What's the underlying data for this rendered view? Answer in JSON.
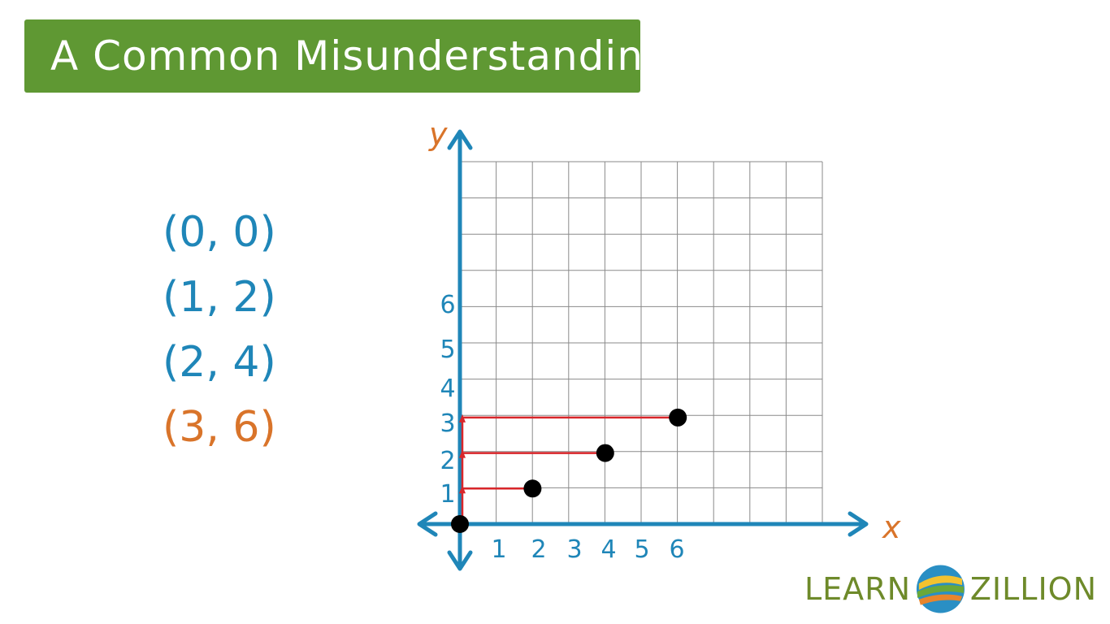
{
  "slide": {
    "title": "A Common Misunderstanding",
    "title_bg": "#5f9833"
  },
  "pairs": [
    {
      "text": "(0, 0)",
      "color": "#1f86b8"
    },
    {
      "text": "(1, 2)",
      "color": "#1f86b8"
    },
    {
      "text": "(2, 4)",
      "color": "#1f86b8"
    },
    {
      "text": "(3, 6)",
      "color": "#d9742a"
    }
  ],
  "chart_data": {
    "type": "scatter",
    "xlabel": "x",
    "ylabel": "y",
    "x_tick_labels": [
      "1",
      "2",
      "3",
      "4",
      "5",
      "6"
    ],
    "y_tick_labels": [
      "1",
      "2",
      "3",
      "4",
      "5",
      "6"
    ],
    "grid": true,
    "grid_columns": 10,
    "grid_rows": 10,
    "points": [
      {
        "x": 0,
        "y": 0
      },
      {
        "x": 2,
        "y": 1
      },
      {
        "x": 4,
        "y": 2
      },
      {
        "x": 6,
        "y": 3
      }
    ],
    "axis_color": "#1f86b8",
    "label_color": "#d9742a",
    "guide_color": "#d9262a",
    "point_color": "#000000"
  },
  "logo": {
    "left_word": "LEARN",
    "right_word": "ZILLION"
  }
}
